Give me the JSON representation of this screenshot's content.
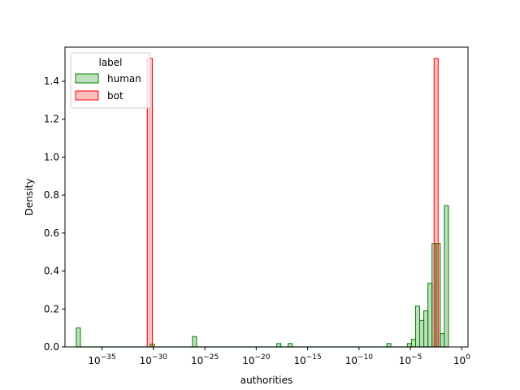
{
  "chart_data": {
    "type": "bar",
    "subtype": "step-histogram",
    "xlabel": "authorities",
    "ylabel": "Density",
    "x_scale": "log10",
    "x_range_exponent": [
      -38.6,
      0.6
    ],
    "xticks": [
      {
        "exp": -35,
        "base": "10",
        "sup": "−35"
      },
      {
        "exp": -30,
        "base": "10",
        "sup": "−30"
      },
      {
        "exp": -25,
        "base": "10",
        "sup": "−25"
      },
      {
        "exp": -20,
        "base": "10",
        "sup": "−20"
      },
      {
        "exp": -15,
        "base": "10",
        "sup": "−15"
      },
      {
        "exp": -10,
        "base": "10",
        "sup": "−10"
      },
      {
        "exp": -5,
        "base": "10",
        "sup": "−5"
      },
      {
        "exp": 0,
        "base": "10",
        "sup": "0"
      }
    ],
    "ylim": [
      0,
      1.58
    ],
    "yticks": [
      "0.0",
      "0.2",
      "0.4",
      "0.6",
      "0.8",
      "1.0",
      "1.2",
      "1.4"
    ],
    "ytick_values": [
      0,
      0.2,
      0.4,
      0.6,
      0.8,
      1.0,
      1.2,
      1.4
    ],
    "legend": {
      "title": "label",
      "placement": "top-left",
      "entries": [
        "human",
        "bot"
      ]
    },
    "series": [
      {
        "name": "human",
        "color": "#008000",
        "fill": "rgba(0,128,0,0.25)",
        "bins": [
          {
            "x0": -37.5,
            "x1": -37.1,
            "y": 0.1
          },
          {
            "x0": -30.3,
            "x1": -29.9,
            "y": 0.015
          },
          {
            "x0": -26.2,
            "x1": -25.8,
            "y": 0.055
          },
          {
            "x0": -18.0,
            "x1": -17.6,
            "y": 0.018
          },
          {
            "x0": -16.9,
            "x1": -16.5,
            "y": 0.018
          },
          {
            "x0": -7.3,
            "x1": -6.9,
            "y": 0.018
          },
          {
            "x0": -5.3,
            "x1": -4.9,
            "y": 0.018
          },
          {
            "x0": -4.9,
            "x1": -4.5,
            "y": 0.04
          },
          {
            "x0": -4.5,
            "x1": -4.1,
            "y": 0.215
          },
          {
            "x0": -4.1,
            "x1": -3.7,
            "y": 0.14
          },
          {
            "x0": -3.7,
            "x1": -3.3,
            "y": 0.19
          },
          {
            "x0": -3.3,
            "x1": -2.9,
            "y": 0.335
          },
          {
            "x0": -2.9,
            "x1": -2.5,
            "y": 0.545
          },
          {
            "x0": -2.5,
            "x1": -2.1,
            "y": 0.545
          },
          {
            "x0": -2.1,
            "x1": -1.7,
            "y": 0.07
          },
          {
            "x0": -1.7,
            "x1": -1.3,
            "y": 0.745
          }
        ]
      },
      {
        "name": "bot",
        "color": "#ff0000",
        "fill": "rgba(255,0,0,0.25)",
        "bins": [
          {
            "x0": -30.6,
            "x1": -30.1,
            "y": 1.52
          },
          {
            "x0": -2.7,
            "x1": -2.3,
            "y": 1.52
          }
        ]
      }
    ]
  }
}
